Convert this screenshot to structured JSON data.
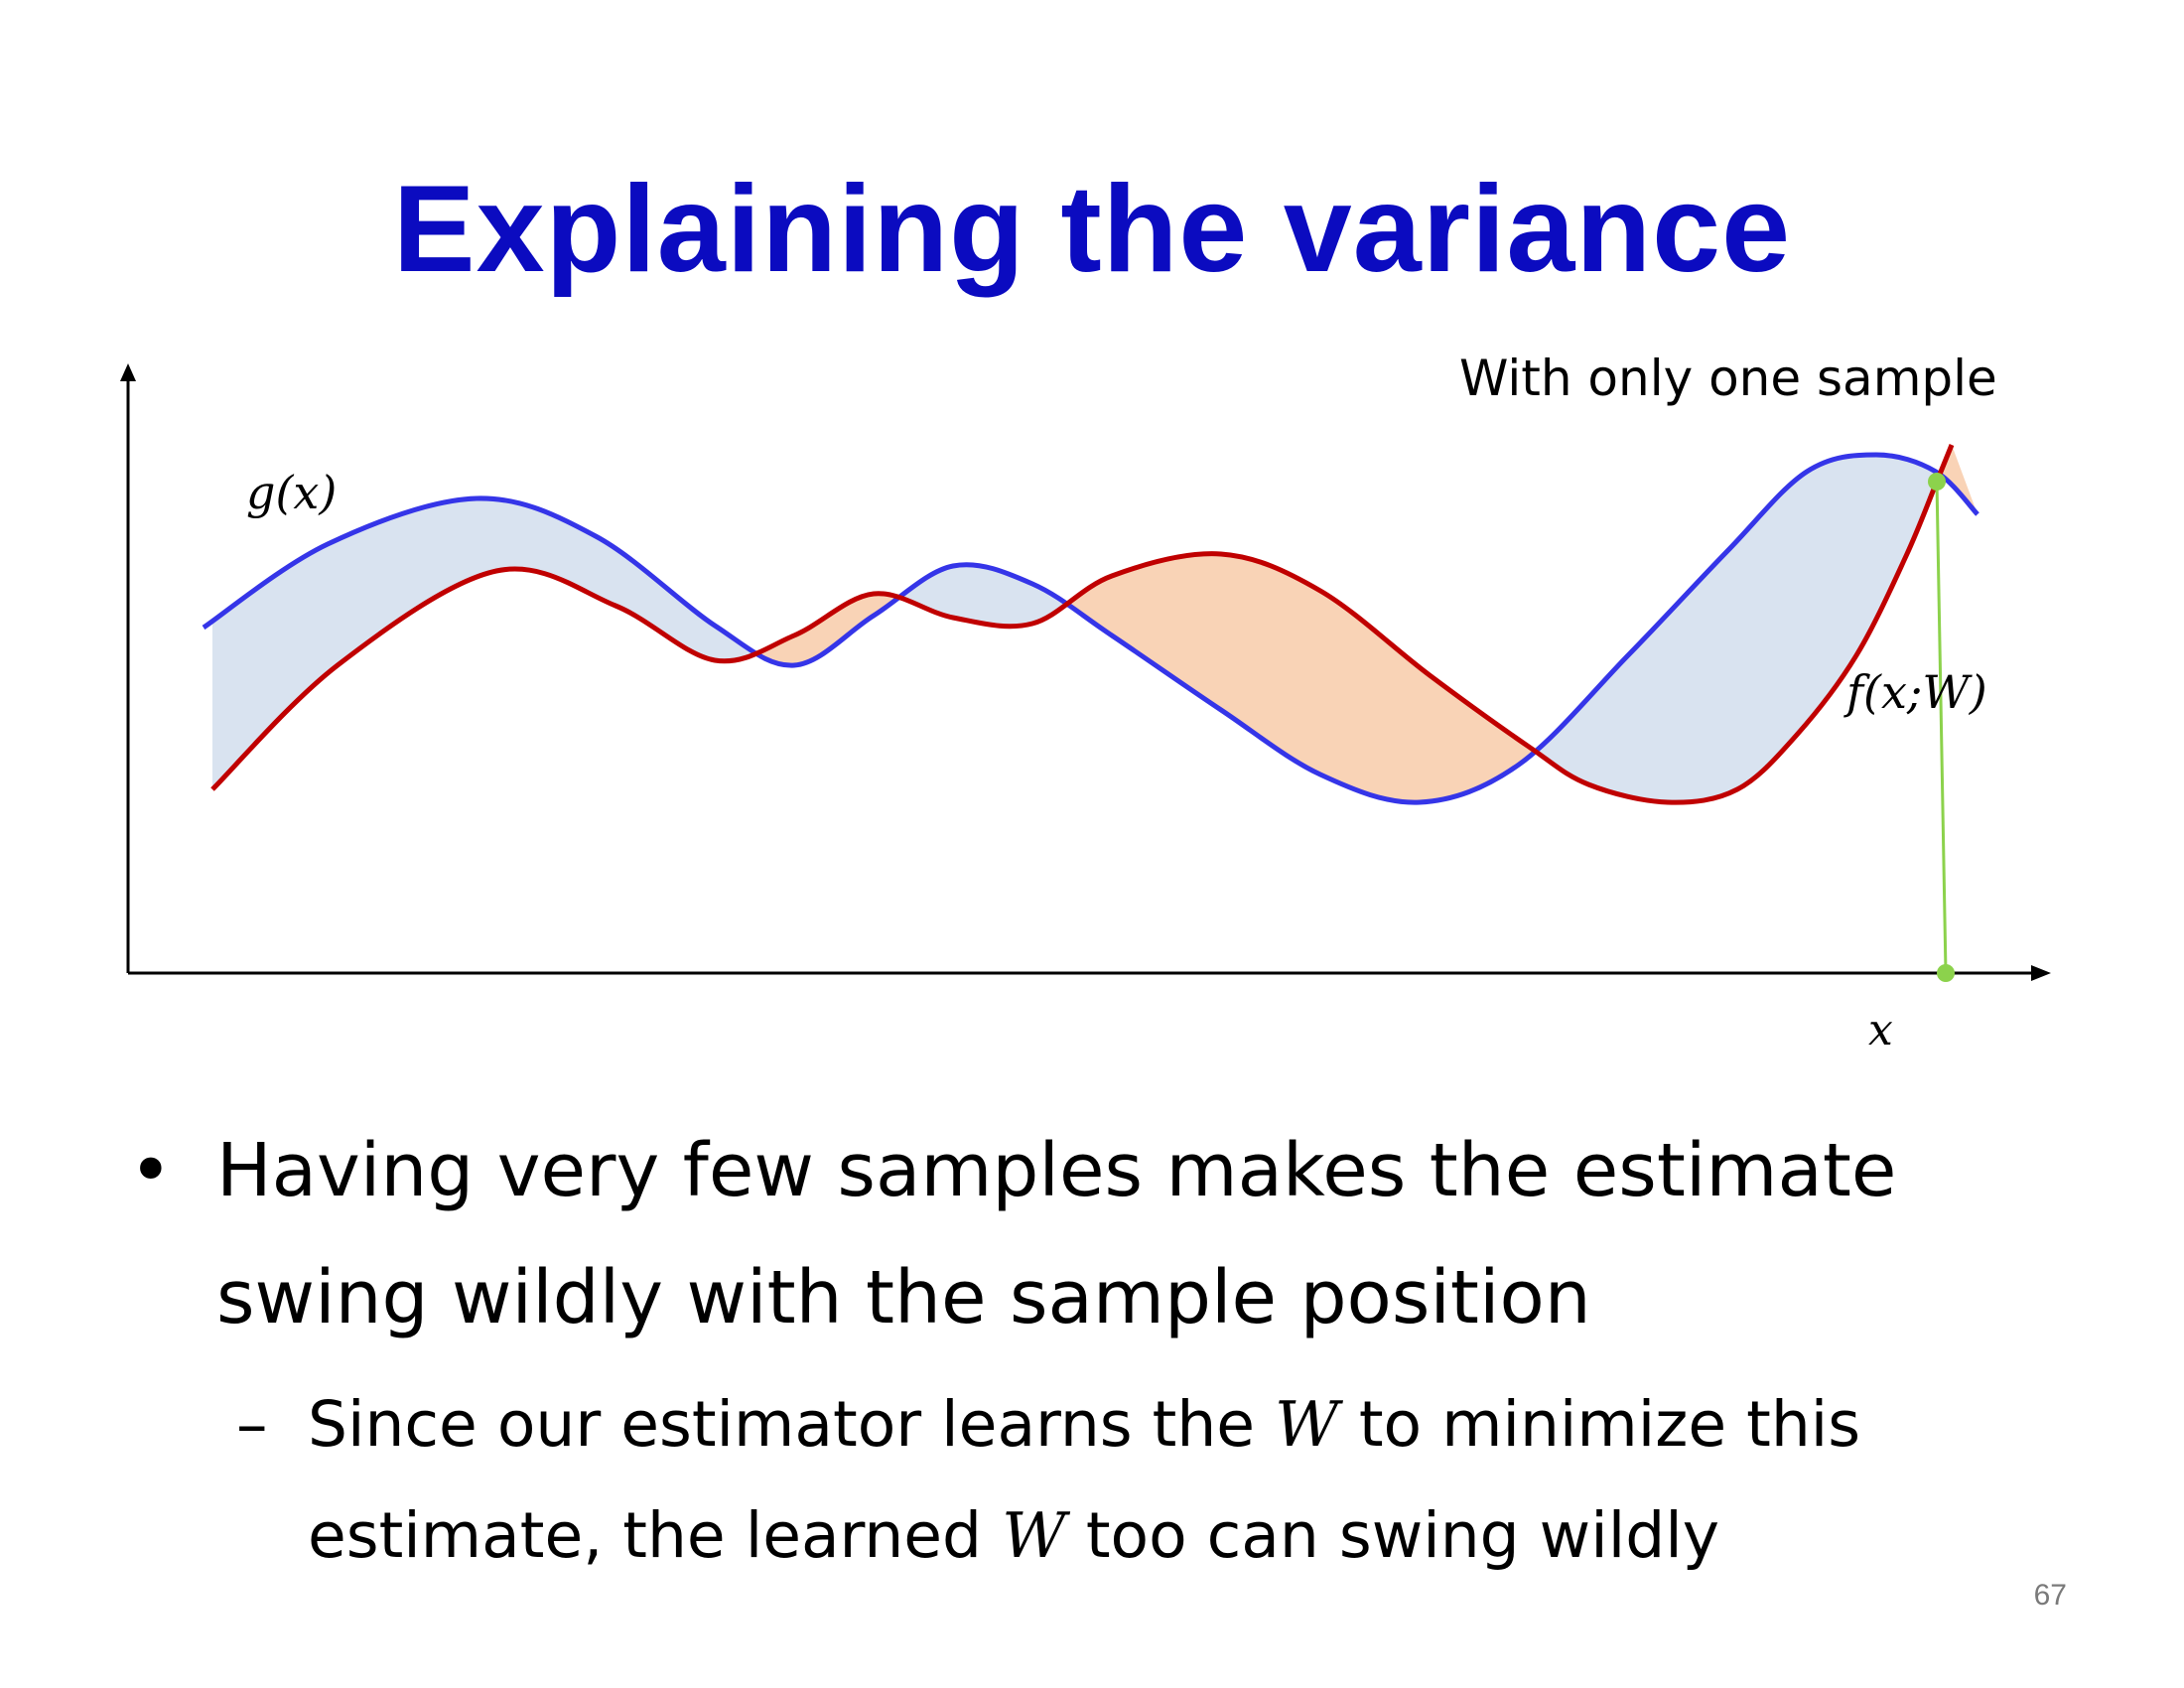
{
  "slide": {
    "title": "Explaining the variance",
    "number": "67"
  },
  "figure": {
    "label_g": "g(x)",
    "label_f": "f(x;W)",
    "label_x": "x",
    "annotation": "With only one sample",
    "colors": {
      "g_curve": "#3535e8",
      "f_curve": "#c00000",
      "fill_g_above": "#d9e3f0",
      "fill_f_above": "#f9d3b6",
      "sample": "#8cd24c",
      "axis": "#000000"
    }
  },
  "bullets": [
    {
      "marker": "•",
      "text": "Having very few samples makes the estimate swing wildly with the sample position",
      "sub": [
        {
          "marker": "–",
          "parts": [
            "Since our estimator learns the ",
            "W",
            " to minimize this estimate, the learned ",
            "W",
            " too can swing wildly"
          ]
        }
      ]
    }
  ]
}
